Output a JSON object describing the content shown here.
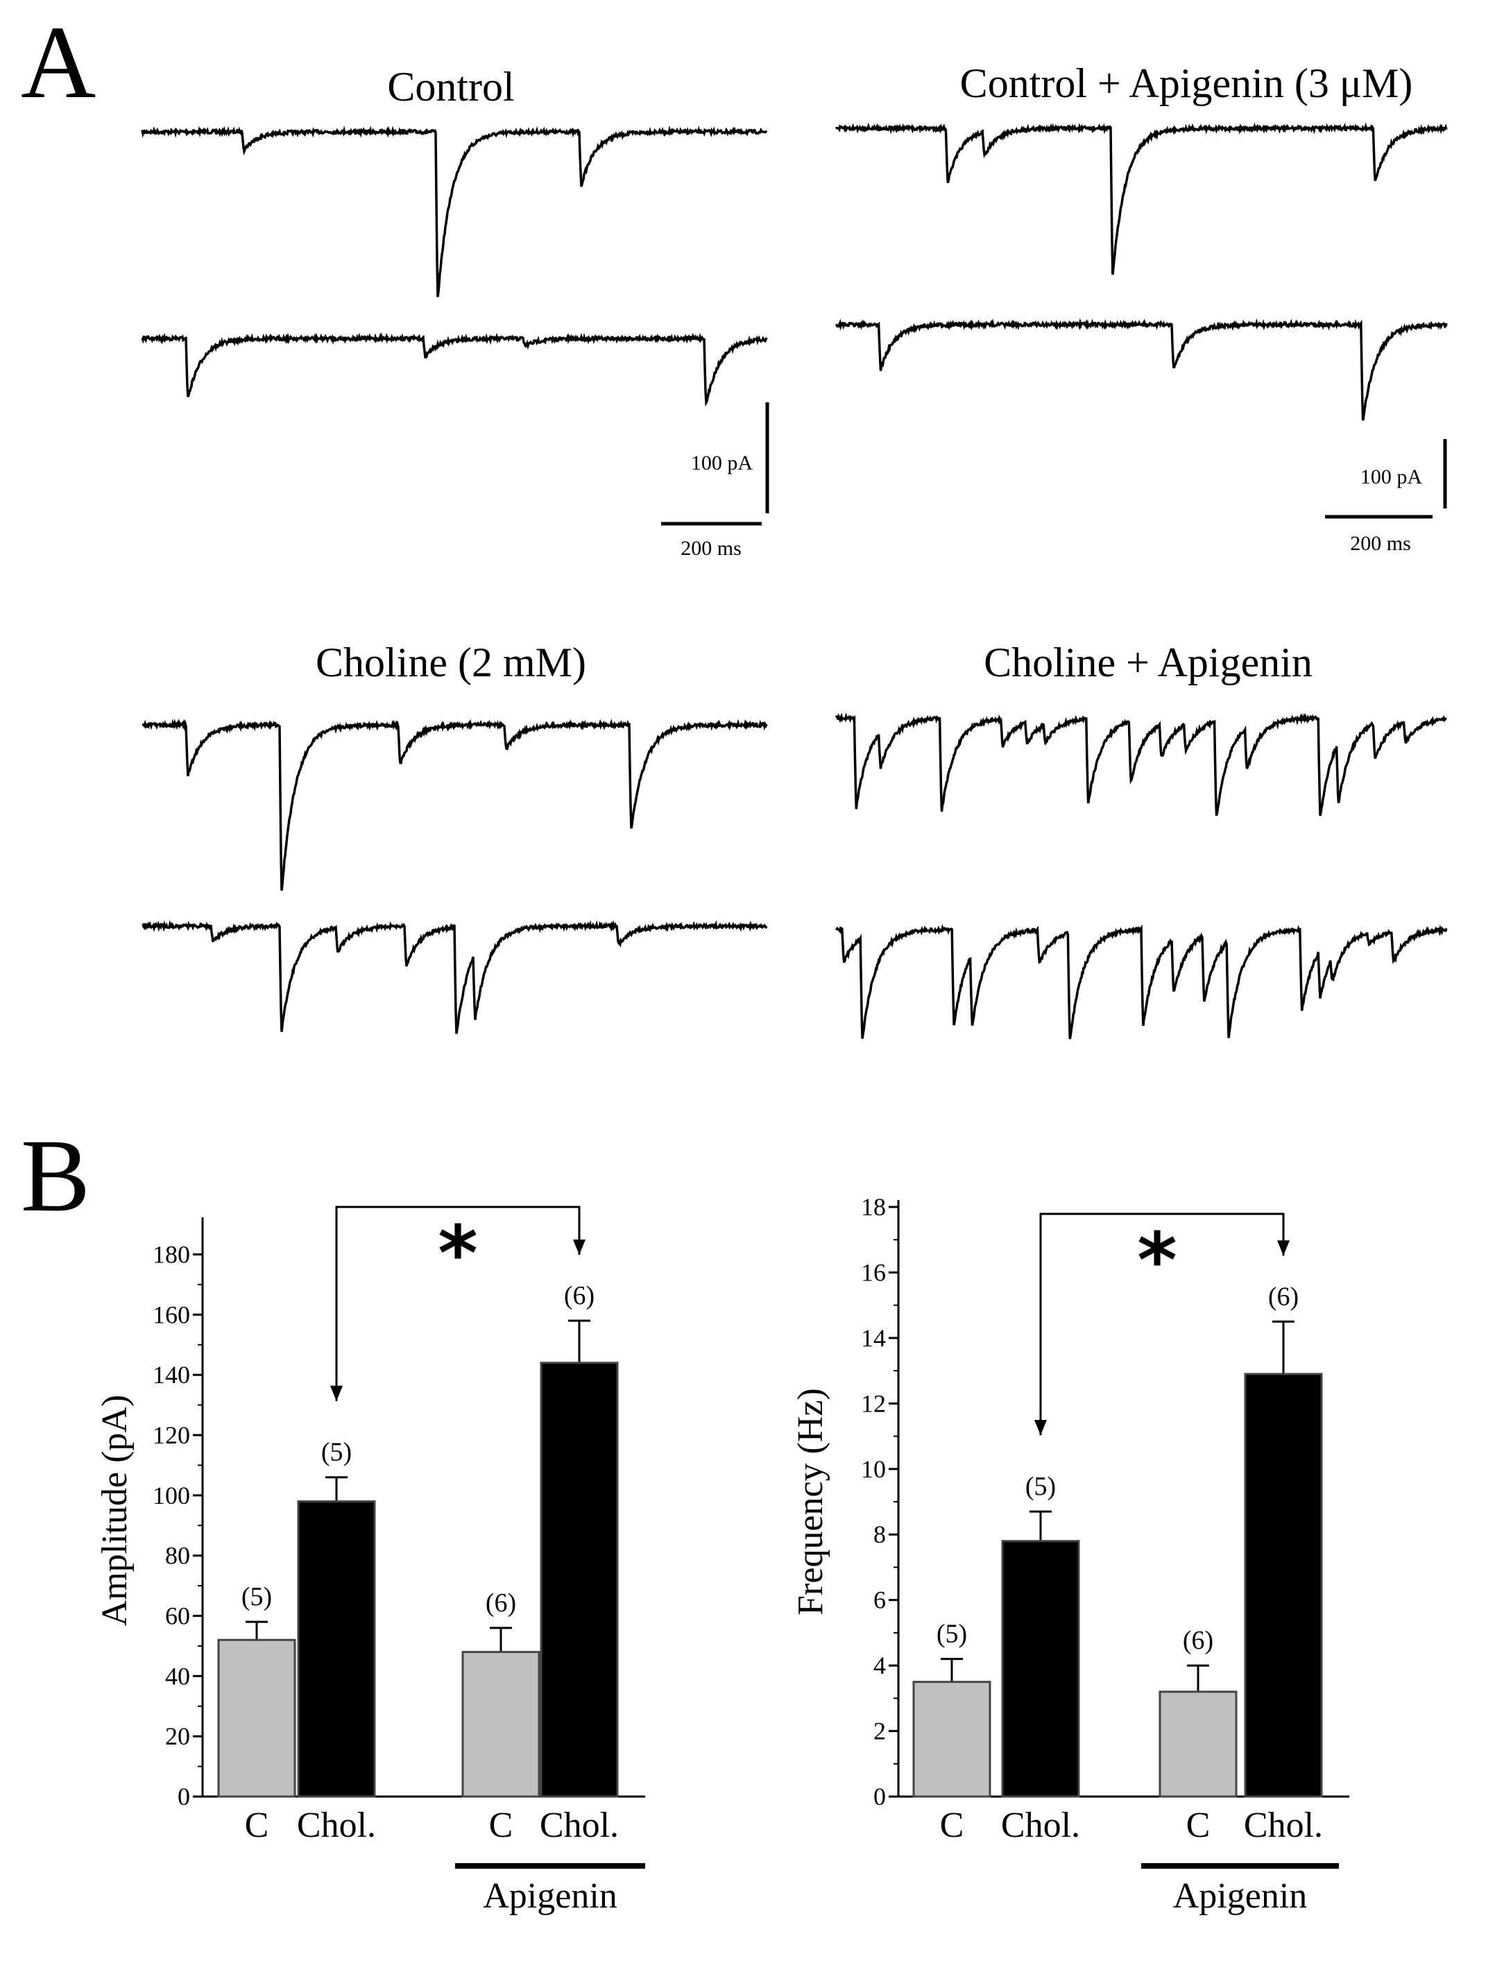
{
  "panels": {
    "a_letter": "A",
    "b_letter": "B"
  },
  "traces": [
    {
      "id": "control",
      "title": "Control",
      "scale": {
        "current": "100 pA",
        "time": "200 ms"
      },
      "rows": [
        {
          "events": [
            [
              0.16,
              0.3
            ],
            [
              0.47,
              2.8
            ],
            [
              0.7,
              0.9
            ]
          ]
        },
        {
          "events": [
            [
              0.07,
              1.0
            ],
            [
              0.45,
              0.3
            ],
            [
              0.61,
              0.12
            ],
            [
              0.9,
              1.1
            ]
          ]
        }
      ]
    },
    {
      "id": "control-apigenin",
      "title": "Control  + Apigenin (3 μM)",
      "scale": {
        "current": "100 pA",
        "time": "200 ms"
      },
      "rows": [
        {
          "events": [
            [
              0.18,
              0.9
            ],
            [
              0.24,
              0.4
            ],
            [
              0.45,
              2.45
            ],
            [
              0.88,
              0.9
            ]
          ]
        },
        {
          "events": [
            [
              0.07,
              0.75
            ],
            [
              0.55,
              0.75
            ],
            [
              0.86,
              1.6
            ]
          ]
        }
      ]
    },
    {
      "id": "choline",
      "title": "Choline (2 mM)",
      "rows": [
        {
          "events": [
            [
              0.07,
              0.85
            ],
            [
              0.22,
              2.8
            ],
            [
              0.41,
              0.65
            ],
            [
              0.58,
              0.4
            ],
            [
              0.78,
              1.75
            ]
          ]
        },
        {
          "events": [
            [
              0.11,
              0.25
            ],
            [
              0.22,
              1.75
            ],
            [
              0.31,
              0.4
            ],
            [
              0.42,
              0.65
            ],
            [
              0.5,
              1.8
            ],
            [
              0.53,
              1.1
            ],
            [
              0.76,
              0.3
            ]
          ]
        }
      ]
    },
    {
      "id": "choline-apigenin",
      "title": "Choline + Apigenin",
      "rows": [
        {
          "events": [
            [
              0.03,
              1.5
            ],
            [
              0.07,
              0.6
            ],
            [
              0.17,
              1.55
            ],
            [
              0.27,
              0.45
            ],
            [
              0.31,
              0.35
            ],
            [
              0.34,
              0.3
            ],
            [
              0.41,
              1.4
            ],
            [
              0.48,
              1.0
            ],
            [
              0.53,
              0.55
            ],
            [
              0.57,
              0.45
            ],
            [
              0.62,
              1.6
            ],
            [
              0.67,
              0.7
            ],
            [
              0.79,
              1.65
            ],
            [
              0.82,
              1.0
            ],
            [
              0.88,
              0.6
            ],
            [
              0.93,
              0.35
            ]
          ]
        },
        {
          "events": [
            [
              0.01,
              0.55
            ],
            [
              0.04,
              1.7
            ],
            [
              0.19,
              1.6
            ],
            [
              0.22,
              1.2
            ],
            [
              0.33,
              0.55
            ],
            [
              0.38,
              1.8
            ],
            [
              0.5,
              1.6
            ],
            [
              0.55,
              0.9
            ],
            [
              0.6,
              1.1
            ],
            [
              0.64,
              1.6
            ],
            [
              0.76,
              1.35
            ],
            [
              0.79,
              0.8
            ],
            [
              0.81,
              0.4
            ],
            [
              0.87,
              0.2
            ],
            [
              0.91,
              0.5
            ]
          ]
        }
      ]
    }
  ],
  "chart_data": [
    {
      "type": "bar",
      "ylabel": "Amplitude (pA)",
      "ylim": [
        0,
        190
      ],
      "yticks": [
        "0",
        "20",
        "40",
        "60",
        "80",
        "100",
        "120",
        "140",
        "160",
        "180"
      ],
      "categories": [
        "C",
        "Chol.",
        "C",
        "Chol."
      ],
      "values": [
        52,
        98,
        48,
        144
      ],
      "errors": [
        6,
        8,
        8,
        14
      ],
      "n_labels": [
        "(5)",
        "(5)",
        "(6)",
        "(6)"
      ],
      "colors": [
        "#c0c0c0",
        "#000000",
        "#c0c0c0",
        "#000000"
      ],
      "group_label": "Apigenin",
      "significance": "*"
    },
    {
      "type": "bar",
      "ylabel": "Frequency (Hz)",
      "ylim": [
        0,
        18
      ],
      "yticks": [
        "0",
        "2",
        "4",
        "6",
        "8",
        "10",
        "12",
        "14",
        "16",
        "18"
      ],
      "categories": [
        "C",
        "Chol.",
        "C",
        "Chol."
      ],
      "values": [
        3.5,
        7.8,
        3.2,
        12.9
      ],
      "errors": [
        0.7,
        0.9,
        0.8,
        1.6
      ],
      "n_labels": [
        "(5)",
        "(5)",
        "(6)",
        "(6)"
      ],
      "colors": [
        "#c0c0c0",
        "#000000",
        "#c0c0c0",
        "#000000"
      ],
      "group_label": "Apigenin",
      "significance": "*"
    }
  ]
}
